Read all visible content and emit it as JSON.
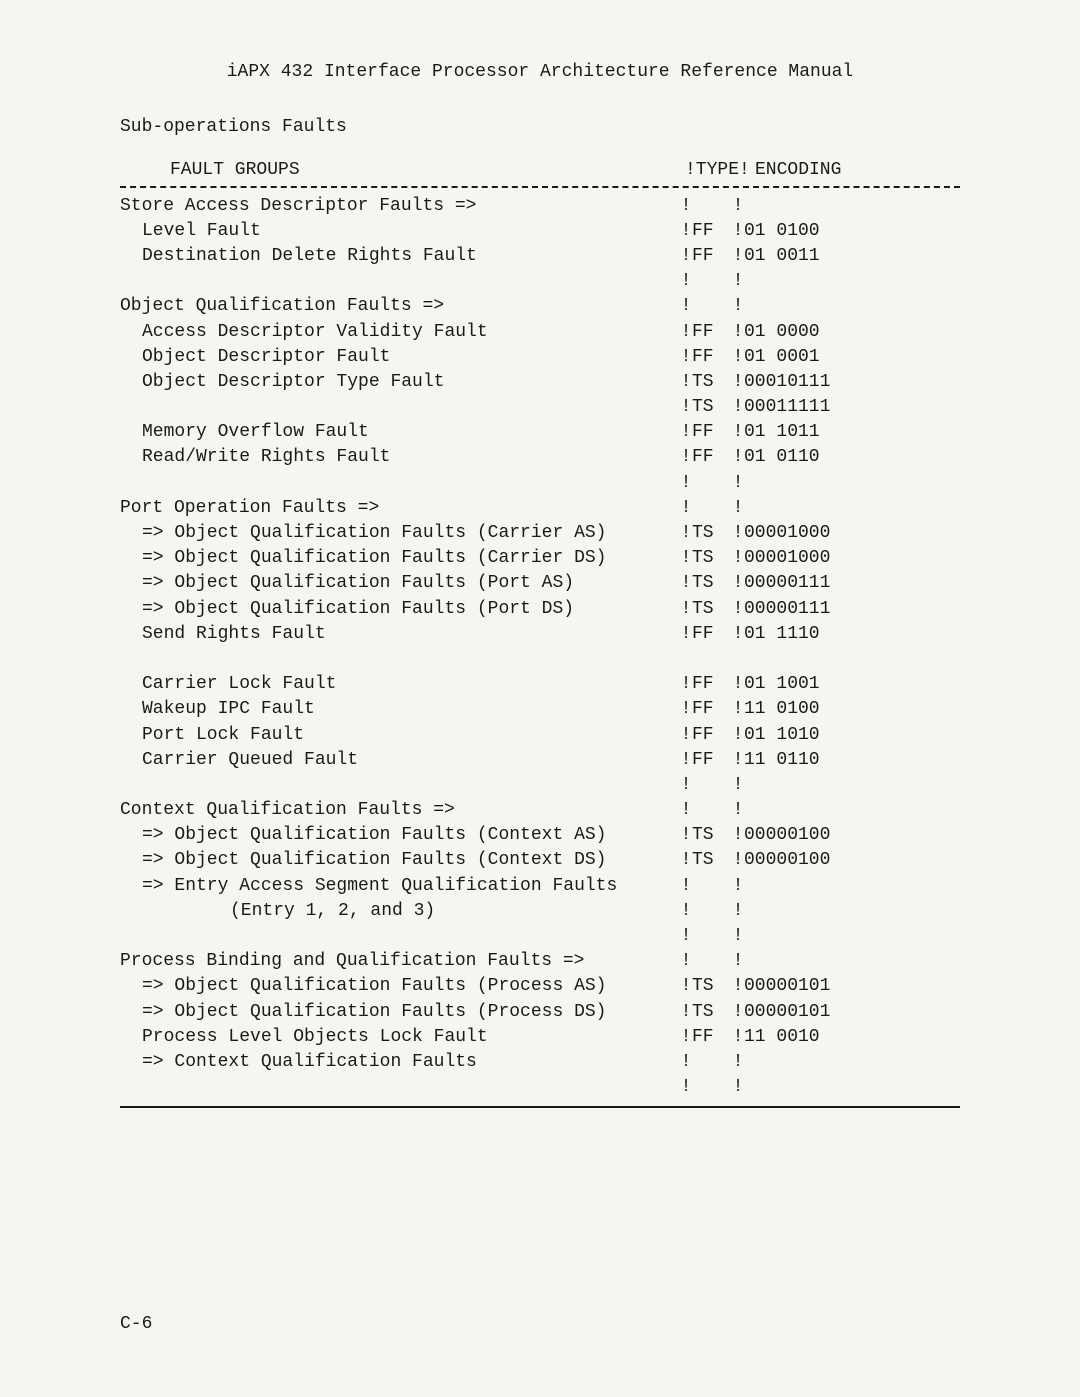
{
  "header": "iAPX 432 Interface Processor Architecture Reference Manual",
  "subtitle": "Sub-operations Faults",
  "columns": {
    "groups": "FAULT GROUPS",
    "type": "!TYPE!",
    "encoding": " ENCODING"
  },
  "rows": [
    {
      "label": "Store Access Descriptor Faults =>",
      "indent": 1,
      "type": "",
      "encoding": "",
      "showSep": true
    },
    {
      "label": "Level Fault",
      "indent": 2,
      "type": "FF",
      "encoding": "01 0100",
      "showSep": true
    },
    {
      "label": "Destination Delete Rights Fault",
      "indent": 2,
      "type": "FF",
      "encoding": "01 0011",
      "showSep": true
    },
    {
      "label": "",
      "indent": 1,
      "type": "",
      "encoding": "",
      "showSep": true,
      "gap": true
    },
    {
      "label": "Object Qualification Faults =>",
      "indent": 1,
      "type": "",
      "encoding": "",
      "showSep": true
    },
    {
      "label": "Access Descriptor Validity Fault",
      "indent": 2,
      "type": "FF",
      "encoding": "01 0000",
      "showSep": true
    },
    {
      "label": "Object Descriptor Fault",
      "indent": 2,
      "type": "FF",
      "encoding": "01 0001",
      "showSep": true
    },
    {
      "label": "Object Descriptor Type Fault",
      "indent": 2,
      "type": "TS",
      "encoding": "00010111",
      "showSep": true
    },
    {
      "label": "",
      "indent": 2,
      "type": "TS",
      "encoding": "00011111",
      "showSep": true
    },
    {
      "label": "Memory Overflow Fault",
      "indent": 2,
      "type": "FF",
      "encoding": "01 1011",
      "showSep": true
    },
    {
      "label": "Read/Write Rights Fault",
      "indent": 2,
      "type": "FF",
      "encoding": "01 0110",
      "showSep": true
    },
    {
      "label": "",
      "indent": 1,
      "type": "",
      "encoding": "",
      "showSep": true,
      "gap": true
    },
    {
      "label": "Port Operation Faults =>",
      "indent": 1,
      "type": "",
      "encoding": "",
      "showSep": true
    },
    {
      "label": "=> Object Qualification Faults (Carrier AS)",
      "indent": 2,
      "type": "TS",
      "encoding": "00001000",
      "showSep": true
    },
    {
      "label": "=> Object Qualification Faults (Carrier DS)",
      "indent": 2,
      "type": "TS",
      "encoding": "00001000",
      "showSep": true
    },
    {
      "label": "=> Object Qualification Faults (Port AS)",
      "indent": 2,
      "type": "TS",
      "encoding": "00000111",
      "showSep": true
    },
    {
      "label": "=> Object Qualification Faults (Port DS)",
      "indent": 2,
      "type": "TS",
      "encoding": "00000111",
      "showSep": true
    },
    {
      "label": "Send Rights Fault",
      "indent": 2,
      "type": "FF",
      "encoding": "01 1110",
      "showSep": true
    },
    {
      "label": "",
      "indent": 1,
      "type": "",
      "encoding": "",
      "showSep": false,
      "blank": true
    },
    {
      "label": "Carrier Lock Fault",
      "indent": 2,
      "type": "FF",
      "encoding": "01 1001",
      "showSep": true
    },
    {
      "label": "Wakeup IPC Fault",
      "indent": 2,
      "type": "FF",
      "encoding": "11 0100",
      "showSep": true
    },
    {
      "label": "Port Lock Fault",
      "indent": 2,
      "type": "FF",
      "encoding": "01 1010",
      "showSep": true
    },
    {
      "label": "Carrier Queued Fault",
      "indent": 2,
      "type": "FF",
      "encoding": "11 0110",
      "showSep": true
    },
    {
      "label": "",
      "indent": 1,
      "type": "",
      "encoding": "",
      "showSep": true,
      "gap": true
    },
    {
      "label": "Context Qualification Faults =>",
      "indent": 1,
      "type": "",
      "encoding": "",
      "showSep": true
    },
    {
      "label": "=> Object Qualification Faults (Context AS)",
      "indent": 2,
      "type": "TS",
      "encoding": "00000100",
      "showSep": true
    },
    {
      "label": "=> Object Qualification Faults (Context DS)",
      "indent": 2,
      "type": "TS",
      "encoding": "00000100",
      "showSep": true
    },
    {
      "label": "=> Entry Access Segment Qualification Faults",
      "indent": 2,
      "type": "",
      "encoding": "",
      "showSep": true
    },
    {
      "label": "(Entry 1, 2, and 3)",
      "indent": 3,
      "type": "",
      "encoding": "",
      "showSep": true
    },
    {
      "label": "",
      "indent": 1,
      "type": "",
      "encoding": "",
      "showSep": true,
      "gap": true
    },
    {
      "label": "Process Binding and Qualification Faults =>",
      "indent": 1,
      "type": "",
      "encoding": "",
      "showSep": true
    },
    {
      "label": "=> Object Qualification Faults (Process AS)",
      "indent": 2,
      "type": "TS",
      "encoding": "00000101",
      "showSep": true
    },
    {
      "label": "=> Object Qualification Faults (Process DS)",
      "indent": 2,
      "type": "TS",
      "encoding": "00000101",
      "showSep": true
    },
    {
      "label": "Process Level Objects Lock Fault",
      "indent": 2,
      "type": "FF",
      "encoding": "11 0010",
      "showSep": true
    },
    {
      "label": "=> Context Qualification Faults",
      "indent": 2,
      "type": "",
      "encoding": "",
      "showSep": true
    },
    {
      "label": "",
      "indent": 1,
      "type": "",
      "encoding": "",
      "showSep": true,
      "gap": true
    }
  ],
  "footer": "C-6",
  "style": {
    "bg": "#f5f5f2",
    "text": "#1a1a1a",
    "font": "Courier New",
    "fontSize": 18
  }
}
